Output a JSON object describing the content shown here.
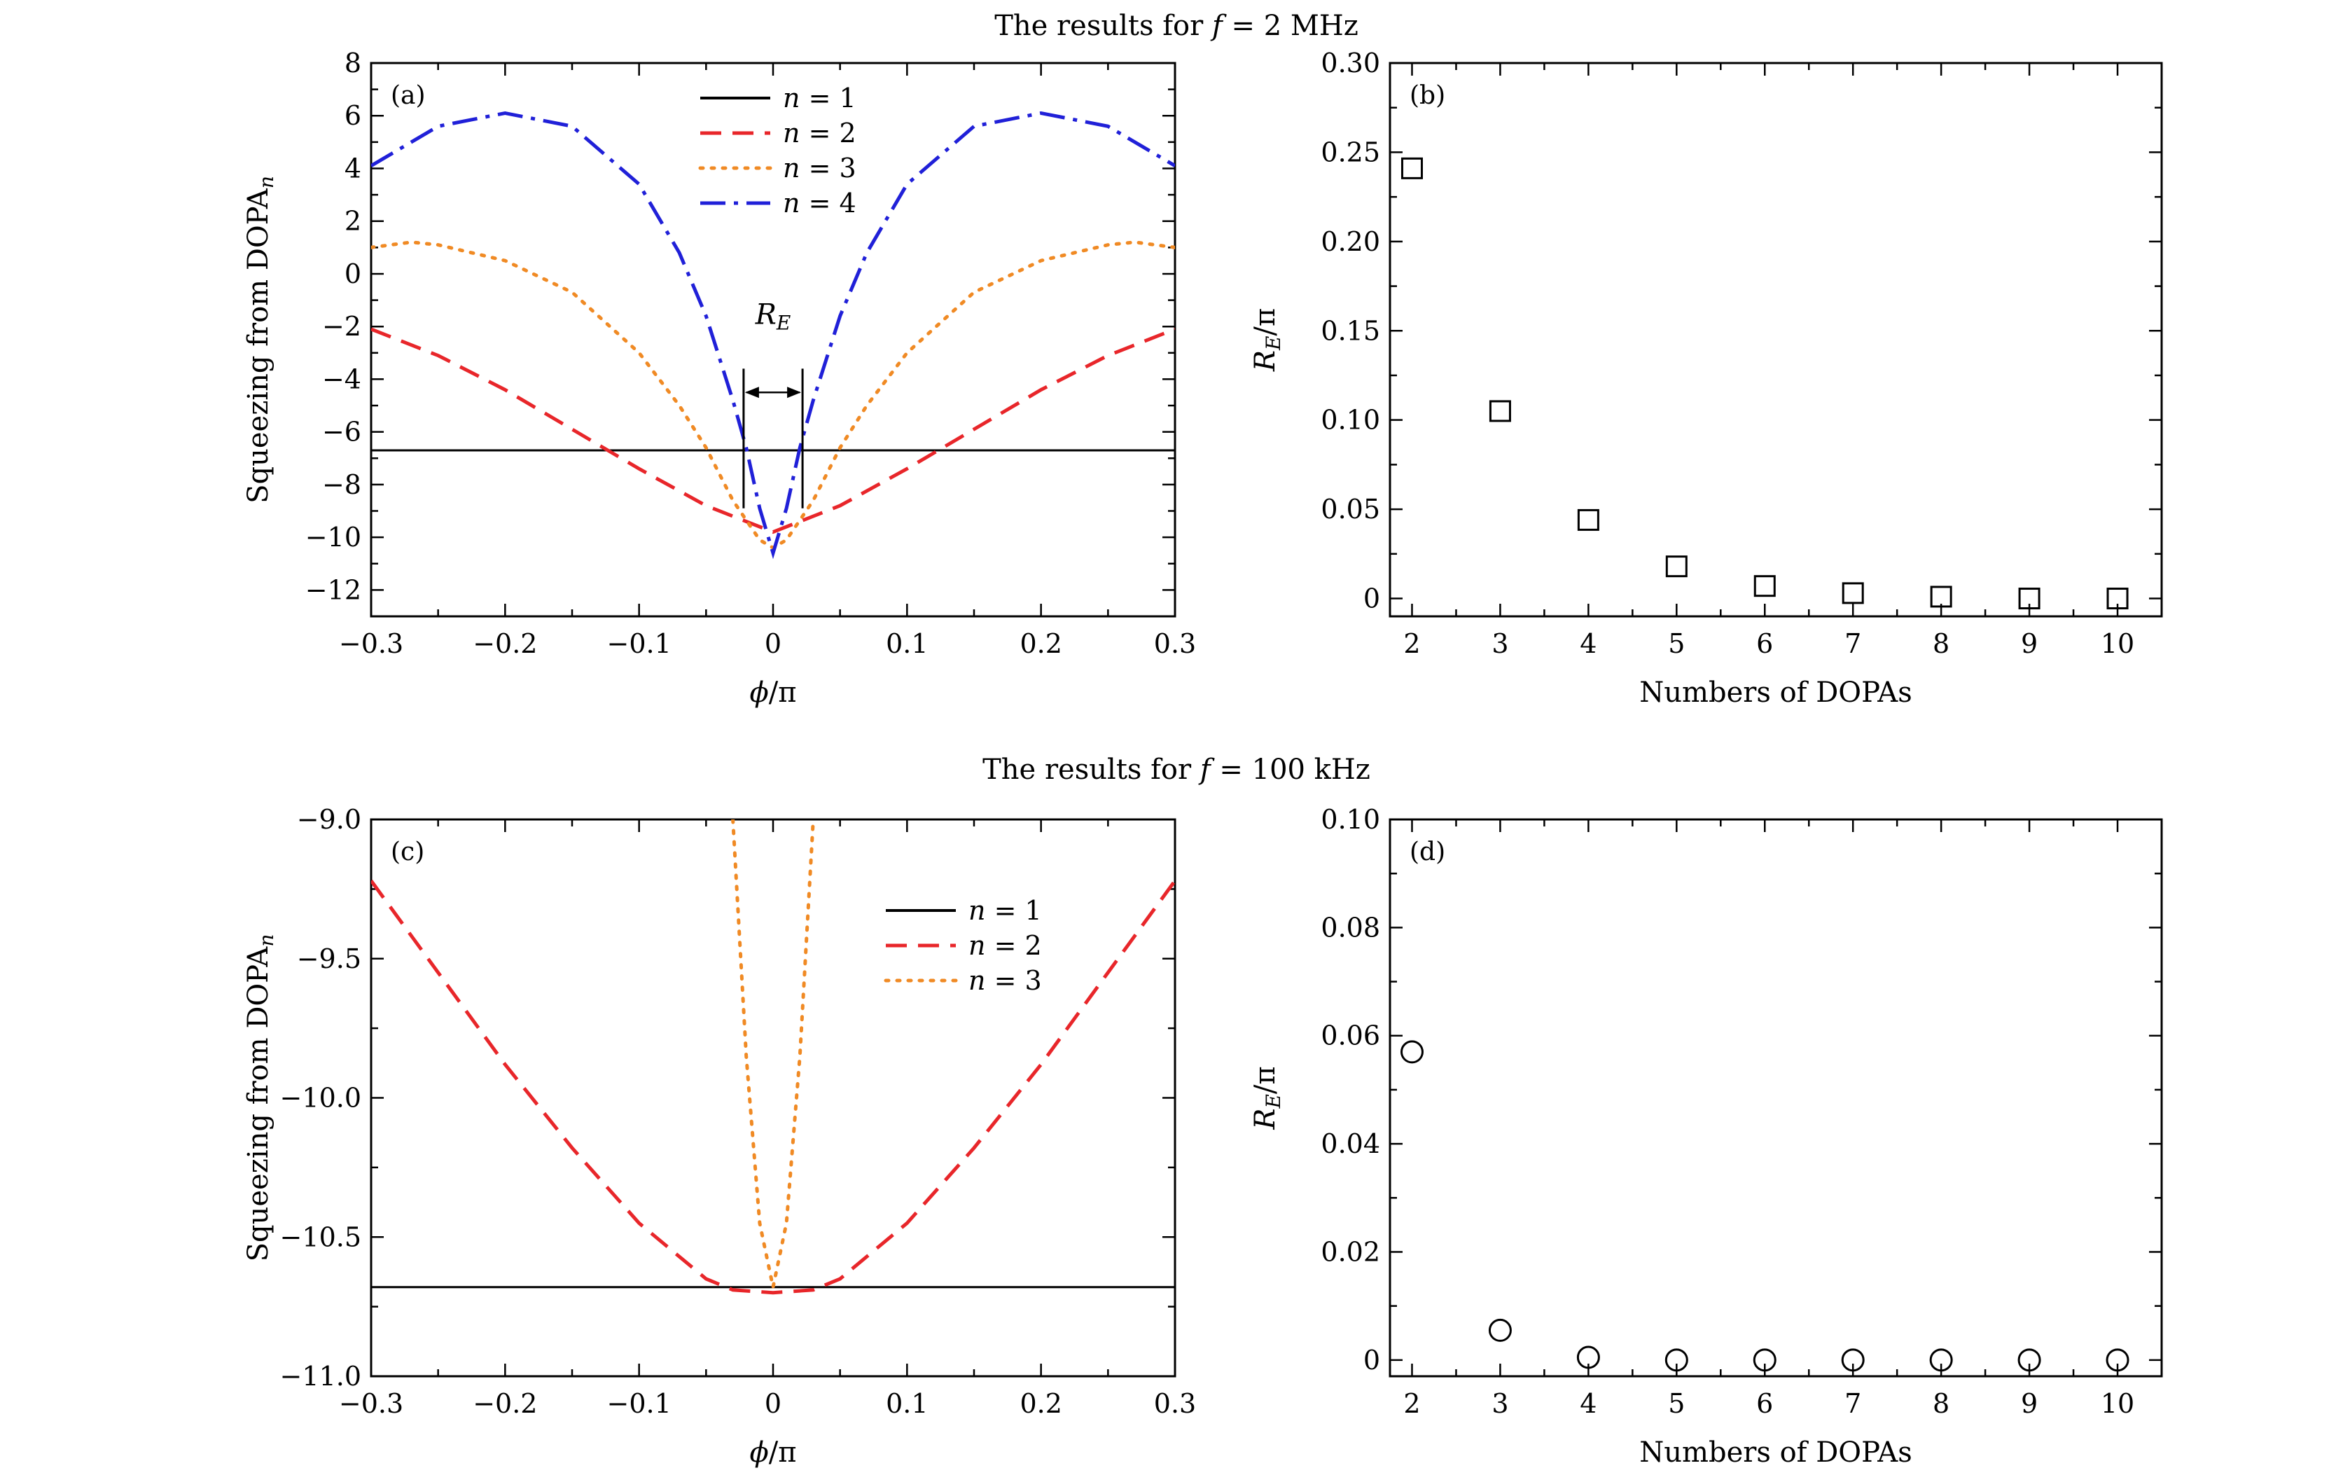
{
  "row_titles": [
    {
      "prefix": "The results for ",
      "var": "f",
      "rest": " = 2 MHz"
    },
    {
      "prefix": "The results for ",
      "var": "f",
      "rest": " = 100 kHz"
    }
  ],
  "colors": {
    "n1": "#000000",
    "n2": "#e8262a",
    "n3": "#f08a24",
    "n4": "#2020d8"
  },
  "chart_data": [
    {
      "id": "a",
      "type": "line",
      "panel_label": "(a)",
      "xlabel": "ϕ/π",
      "ylabel": "Squeezing from DOPA",
      "ylabel_sub": "n",
      "xlim": [
        -0.3,
        0.3
      ],
      "ylim": [
        -13,
        8
      ],
      "xticks": [
        -0.3,
        -0.2,
        -0.1,
        0,
        0.1,
        0.2,
        0.3
      ],
      "xtick_labels": [
        "−0.3",
        "−0.2",
        "−0.1",
        "0",
        "0.1",
        "0.2",
        "0.3"
      ],
      "yticks": [
        -12,
        -10,
        -8,
        -6,
        -4,
        -2,
        0,
        2,
        4,
        6,
        8
      ],
      "ytick_labels": [
        "−12",
        "−10",
        "−8",
        "−6",
        "−4",
        "−2",
        "0",
        "2",
        "4",
        "6",
        "8"
      ],
      "legend_position": "top-center",
      "annotation": {
        "text": "R",
        "sub": "E",
        "x1": -0.022,
        "x2": 0.022,
        "y": -4.5
      },
      "series": [
        {
          "name": "n = 1",
          "style": "solid",
          "color_key": "n1",
          "x": [
            -0.3,
            0.3
          ],
          "y": [
            -6.7,
            -6.7
          ]
        },
        {
          "name": "n = 2",
          "style": "dashed",
          "color_key": "n2",
          "x": [
            -0.3,
            -0.25,
            -0.2,
            -0.15,
            -0.1,
            -0.05,
            0,
            0.05,
            0.1,
            0.15,
            0.2,
            0.25,
            0.3
          ],
          "y": [
            -2.1,
            -3.1,
            -4.4,
            -5.9,
            -7.4,
            -8.8,
            -9.8,
            -8.8,
            -7.4,
            -5.9,
            -4.4,
            -3.1,
            -2.1
          ]
        },
        {
          "name": "n = 3",
          "style": "dotted",
          "color_key": "n3",
          "x": [
            -0.3,
            -0.27,
            -0.25,
            -0.2,
            -0.15,
            -0.1,
            -0.07,
            -0.05,
            -0.03,
            -0.01,
            0,
            0.01,
            0.03,
            0.05,
            0.07,
            0.1,
            0.15,
            0.2,
            0.25,
            0.27,
            0.3
          ],
          "y": [
            1.0,
            1.2,
            1.1,
            0.5,
            -0.7,
            -3.0,
            -5.0,
            -6.6,
            -8.6,
            -10.1,
            -10.4,
            -10.1,
            -8.6,
            -6.6,
            -5.0,
            -3.0,
            -0.7,
            0.5,
            1.1,
            1.2,
            1.0
          ]
        },
        {
          "name": "n = 4",
          "style": "dashdot",
          "color_key": "n4",
          "x": [
            -0.3,
            -0.25,
            -0.2,
            -0.15,
            -0.1,
            -0.07,
            -0.05,
            -0.03,
            -0.02,
            -0.01,
            0,
            0.01,
            0.02,
            0.03,
            0.05,
            0.07,
            0.1,
            0.15,
            0.2,
            0.25,
            0.3
          ],
          "y": [
            4.1,
            5.6,
            6.1,
            5.6,
            3.4,
            0.8,
            -1.6,
            -4.8,
            -6.6,
            -8.9,
            -10.6,
            -8.9,
            -6.6,
            -4.8,
            -1.6,
            0.8,
            3.4,
            5.6,
            6.1,
            5.6,
            4.1
          ]
        }
      ]
    },
    {
      "id": "b",
      "type": "scatter",
      "panel_label": "(b)",
      "marker": "square",
      "xlabel": "Numbers of DOPAs",
      "ylabel": "R",
      "ylabel_sub": "E",
      "ylabel_rest": "/π",
      "xlim": [
        1.75,
        10.5
      ],
      "ylim": [
        -0.01,
        0.3
      ],
      "xticks": [
        2,
        3,
        4,
        5,
        6,
        7,
        8,
        9,
        10
      ],
      "xtick_labels": [
        "2",
        "3",
        "4",
        "5",
        "6",
        "7",
        "8",
        "9",
        "10"
      ],
      "yticks": [
        0,
        0.05,
        0.1,
        0.15,
        0.2,
        0.25,
        0.3
      ],
      "ytick_labels": [
        "0",
        "0.05",
        "0.10",
        "0.15",
        "0.20",
        "0.25",
        "0.30"
      ],
      "x": [
        2,
        3,
        4,
        5,
        6,
        7,
        8,
        9,
        10
      ],
      "y": [
        0.241,
        0.105,
        0.044,
        0.018,
        0.007,
        0.003,
        0.001,
        0.0,
        0.0
      ]
    },
    {
      "id": "c",
      "type": "line",
      "panel_label": "(c)",
      "xlabel": "ϕ/π",
      "ylabel": "Squeezing from DOPA",
      "ylabel_sub": "n",
      "xlim": [
        -0.3,
        0.3
      ],
      "ylim": [
        -11.0,
        -9.0
      ],
      "xticks": [
        -0.3,
        -0.2,
        -0.1,
        0,
        0.1,
        0.2,
        0.3
      ],
      "xtick_labels": [
        "−0.3",
        "−0.2",
        "−0.1",
        "0",
        "0.1",
        "0.2",
        "0.3"
      ],
      "yticks": [
        -11.0,
        -10.5,
        -10.0,
        -9.5,
        -9.0
      ],
      "ytick_labels": [
        "−11.0",
        "−10.5",
        "−10.0",
        "−9.5",
        "−9.0"
      ],
      "legend_position": "right",
      "series": [
        {
          "name": "n = 1",
          "style": "solid",
          "color_key": "n1",
          "x": [
            -0.3,
            0.3
          ],
          "y": [
            -10.68,
            -10.68
          ]
        },
        {
          "name": "n = 2",
          "style": "dashed",
          "color_key": "n2",
          "x": [
            -0.3,
            -0.25,
            -0.2,
            -0.15,
            -0.1,
            -0.05,
            -0.03,
            0,
            0.03,
            0.05,
            0.1,
            0.15,
            0.2,
            0.25,
            0.3
          ],
          "y": [
            -9.22,
            -9.55,
            -9.88,
            -10.18,
            -10.45,
            -10.65,
            -10.69,
            -10.7,
            -10.69,
            -10.65,
            -10.45,
            -10.18,
            -9.88,
            -9.55,
            -9.22
          ]
        },
        {
          "name": "n = 3",
          "style": "dotted",
          "color_key": "n3",
          "x": [
            -0.03,
            -0.02,
            -0.01,
            0,
            0.01,
            0.02,
            0.03
          ],
          "y": [
            -9.0,
            -9.85,
            -10.45,
            -10.68,
            -10.45,
            -9.85,
            -9.0
          ]
        }
      ]
    },
    {
      "id": "d",
      "type": "scatter",
      "panel_label": "(d)",
      "marker": "circle",
      "xlabel": "Numbers of DOPAs",
      "ylabel": "R",
      "ylabel_sub": "E",
      "ylabel_rest": "/π",
      "xlim": [
        1.75,
        10.5
      ],
      "ylim": [
        -0.003,
        0.1
      ],
      "xticks": [
        2,
        3,
        4,
        5,
        6,
        7,
        8,
        9,
        10
      ],
      "xtick_labels": [
        "2",
        "3",
        "4",
        "5",
        "6",
        "7",
        "8",
        "9",
        "10"
      ],
      "yticks": [
        0,
        0.02,
        0.04,
        0.06,
        0.08,
        0.1
      ],
      "ytick_labels": [
        "0",
        "0.02",
        "0.04",
        "0.06",
        "0.08",
        "0.10"
      ],
      "x": [
        2,
        3,
        4,
        5,
        6,
        7,
        8,
        9,
        10
      ],
      "y": [
        0.057,
        0.0055,
        0.0005,
        0.0,
        0.0,
        0.0,
        0.0,
        0.0,
        0.0
      ]
    }
  ]
}
